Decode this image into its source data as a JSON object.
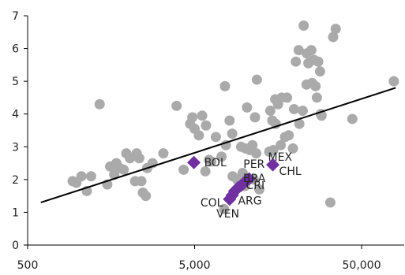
{
  "chart_data": {
    "type": "scatter",
    "title": "",
    "xlabel": "",
    "ylabel": "",
    "x_scale": "log",
    "xlim": [
      500,
      90000
    ],
    "ylim": [
      0,
      7
    ],
    "x_ticks": [
      500,
      5000,
      50000
    ],
    "x_tick_labels": [
      "500",
      "5,000",
      "50,000"
    ],
    "y_ticks": [
      0,
      1,
      2,
      3,
      4,
      5,
      6,
      7
    ],
    "y_tick_labels": [
      "0",
      "1",
      "2",
      "3",
      "4",
      "5",
      "6",
      "7"
    ],
    "grid": false,
    "legend": "none",
    "colors": {
      "gray_points": "#aaaaaa",
      "highlight": "#7030a0",
      "trend": "#000000",
      "axis": "#000000"
    },
    "trend_line": {
      "from": [
        600,
        1.3
      ],
      "to": [
        80000,
        4.8
      ]
    },
    "series": [
      {
        "marker": "circle",
        "points": [
          [
            930,
            1.95
          ],
          [
            980,
            1.9
          ],
          [
            1050,
            2.1
          ],
          [
            1130,
            1.65
          ],
          [
            1200,
            2.1
          ],
          [
            1350,
            4.3
          ],
          [
            1500,
            1.85
          ],
          [
            1560,
            2.4
          ],
          [
            1650,
            2.15
          ],
          [
            1700,
            2.5
          ],
          [
            1780,
            2.35
          ],
          [
            1880,
            2.3
          ],
          [
            1950,
            2.8
          ],
          [
            2050,
            2.65
          ],
          [
            2200,
            1.95
          ],
          [
            2250,
            2.8
          ],
          [
            2330,
            2.65
          ],
          [
            2400,
            1.95
          ],
          [
            2450,
            1.6
          ],
          [
            2550,
            1.5
          ],
          [
            2600,
            2.35
          ],
          [
            2800,
            2.5
          ],
          [
            3250,
            2.8
          ],
          [
            3900,
            4.25
          ],
          [
            4300,
            2.3
          ],
          [
            4700,
            3.7
          ],
          [
            4850,
            3.9
          ],
          [
            5000,
            3.55
          ],
          [
            5300,
            3.35
          ],
          [
            5550,
            3.95
          ],
          [
            5800,
            2.25
          ],
          [
            5850,
            3.65
          ],
          [
            6100,
            2.6
          ],
          [
            6300,
            2.55
          ],
          [
            6700,
            3.3
          ],
          [
            7250,
            2.7
          ],
          [
            7500,
            1.1
          ],
          [
            7600,
            4.85
          ],
          [
            7700,
            3.05
          ],
          [
            8100,
            3.8
          ],
          [
            8400,
            3.4
          ],
          [
            8450,
            2.1
          ],
          [
            9000,
            2.0
          ],
          [
            9500,
            3.0
          ],
          [
            9700,
            2.2
          ],
          [
            10000,
            1.8
          ],
          [
            10100,
            2.95
          ],
          [
            10300,
            4.2
          ],
          [
            10700,
            2.9
          ],
          [
            11100,
            3.05
          ],
          [
            11300,
            2.0
          ],
          [
            11500,
            3.9
          ],
          [
            11700,
            2.8
          ],
          [
            11800,
            5.05
          ],
          [
            12200,
            1.7
          ],
          [
            14000,
            2.85
          ],
          [
            14200,
            4.1
          ],
          [
            14600,
            3.8
          ],
          [
            14800,
            2.9
          ],
          [
            15200,
            4.45
          ],
          [
            15300,
            3.7
          ],
          [
            15800,
            4.3
          ],
          [
            16400,
            3.05
          ],
          [
            16600,
            4.5
          ],
          [
            17400,
            3.3
          ],
          [
            17900,
            4.5
          ],
          [
            18300,
            3.35
          ],
          [
            19400,
            2.95
          ],
          [
            19700,
            4.15
          ],
          [
            20200,
            5.6
          ],
          [
            21000,
            5.95
          ],
          [
            21200,
            3.7
          ],
          [
            22200,
            4.1
          ],
          [
            22500,
            6.7
          ],
          [
            23400,
            4.9
          ],
          [
            23500,
            5.85
          ],
          [
            24000,
            5.55
          ],
          [
            25000,
            5.95
          ],
          [
            25300,
            4.95
          ],
          [
            26000,
            5.65
          ],
          [
            26500,
            4.85
          ],
          [
            27000,
            4.5
          ],
          [
            27500,
            5.6
          ],
          [
            28200,
            5.3
          ],
          [
            28500,
            4.0
          ],
          [
            28800,
            3.95
          ],
          [
            32500,
            1.3
          ],
          [
            33800,
            6.35
          ],
          [
            35000,
            6.6
          ],
          [
            44000,
            3.85
          ],
          [
            78000,
            5.0
          ]
        ]
      },
      {
        "marker": "diamond",
        "points": [
          [
            4950,
            2.52
          ],
          [
            8100,
            1.4
          ],
          [
            8400,
            1.52
          ],
          [
            8700,
            1.65
          ],
          [
            9100,
            1.75
          ],
          [
            9500,
            1.82
          ],
          [
            9900,
            1.9
          ],
          [
            10200,
            1.97
          ],
          [
            10600,
            2.02
          ],
          [
            14700,
            2.45
          ]
        ]
      }
    ],
    "annotations": [
      {
        "label": "BOL",
        "x": 4950,
        "y": 2.52
      },
      {
        "label": "PER",
        "x": 9900,
        "y": 1.9
      },
      {
        "label": "BRA",
        "x": 10200,
        "y": 1.97
      },
      {
        "label": "CRI",
        "x": 10600,
        "y": 2.02
      },
      {
        "label": "ARG",
        "x": 9500,
        "y": 1.82
      },
      {
        "label": "COL",
        "x": 8100,
        "y": 1.4
      },
      {
        "label": "VEN",
        "x": 8400,
        "y": 1.52
      },
      {
        "label": "MEX",
        "x": 14700,
        "y": 2.45
      },
      {
        "label": "CHL",
        "x": 14700,
        "y": 2.45
      }
    ]
  }
}
